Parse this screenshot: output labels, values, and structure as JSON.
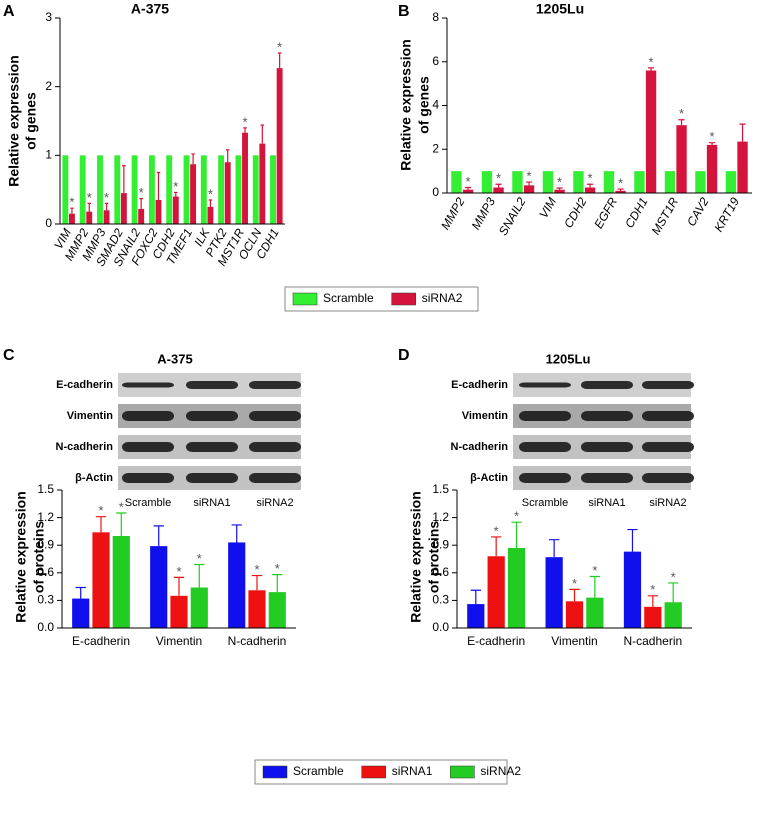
{
  "panel_labels": [
    "A",
    "B",
    "C",
    "D"
  ],
  "blots": [
    {
      "title": "A-375",
      "rows": [
        "E-cadherin",
        "Vimentin",
        "N-cadherin",
        "β-Actin"
      ],
      "lanes": [
        "Scramble",
        "siRNA1",
        "siRNA2"
      ]
    },
    {
      "title": "1205Lu",
      "rows": [
        "E-cadherin",
        "Vimentin",
        "N-cadherin",
        "β-Actin"
      ],
      "lanes": [
        "Scramble",
        "siRNA1",
        "siRNA2"
      ]
    }
  ],
  "chart_data": [
    {
      "type": "bar",
      "title": "A-375",
      "ylabel": [
        "Relative expression",
        "of genes"
      ],
      "categories": [
        "VIM",
        "MMP2",
        "MMP3",
        "SMAD2",
        "SNAIL2",
        "FOXC2",
        "CDH2",
        "TMEF1",
        "ILK",
        "PTK2",
        "MST1R",
        "OCLN",
        "CDH1"
      ],
      "ylim": [
        0,
        3
      ],
      "yticks": [
        0,
        1,
        2,
        3
      ],
      "series": [
        {
          "name": "Scramble",
          "color": "#33ee33",
          "values": [
            1,
            1,
            1,
            1,
            1,
            1,
            1,
            1,
            1,
            1,
            1,
            1,
            1
          ]
        },
        {
          "name": "siRNA2",
          "color": "#d4143c",
          "values": [
            0.15,
            0.18,
            0.2,
            0.45,
            0.22,
            0.35,
            0.4,
            0.87,
            0.25,
            0.9,
            1.33,
            1.17,
            2.27
          ],
          "errors": [
            0.08,
            0.12,
            0.1,
            0.4,
            0.15,
            0.4,
            0.06,
            0.15,
            0.1,
            0.18,
            0.07,
            0.27,
            0.22
          ],
          "annotations": [
            "*",
            "*",
            "*",
            null,
            "*",
            null,
            "*",
            null,
            "*",
            null,
            "*",
            null,
            "*"
          ]
        }
      ]
    },
    {
      "type": "bar",
      "title": "1205Lu",
      "ylabel": [
        "Relative expression",
        "of genes"
      ],
      "categories": [
        "MMP2",
        "MMP3",
        "SNAIL2",
        "VIM",
        "CDH2",
        "EGFR",
        "CDH1",
        "MST1R",
        "CAV2",
        "KRT19"
      ],
      "ylim": [
        0,
        8
      ],
      "yticks": [
        0,
        2,
        4,
        6,
        8
      ],
      "series": [
        {
          "color": "#33ee33",
          "values": [
            1,
            1,
            1,
            1,
            1,
            1,
            1,
            1,
            1,
            1
          ]
        },
        {
          "color": "#d4143c",
          "values": [
            0.15,
            0.25,
            0.35,
            0.15,
            0.25,
            0.1,
            5.6,
            3.1,
            2.2,
            2.35
          ],
          "errors": [
            0.1,
            0.15,
            0.15,
            0.08,
            0.15,
            0.08,
            0.12,
            0.25,
            0.1,
            0.8
          ],
          "annotations": [
            "*",
            "*",
            "*",
            "*",
            "*",
            "*",
            "*",
            "*",
            "*",
            null
          ]
        }
      ]
    },
    {
      "type": "bar",
      "ylabel": [
        "Relative expression",
        "of proteins"
      ],
      "categories": [
        "E-cadherin",
        "Vimentin",
        "N-cadherin"
      ],
      "ylim": [
        0,
        1.5
      ],
      "yticks": [
        {
          "value": 0,
          "label": "0.0"
        },
        0.3,
        0.6,
        0.9,
        1.2,
        1.5
      ],
      "series": [
        {
          "name": "Scramble",
          "color": "#1010ee",
          "values": [
            0.32,
            0.89,
            0.93
          ],
          "errors": [
            0.12,
            0.22,
            0.19
          ]
        },
        {
          "name": "siRNA1",
          "color": "#ee1111",
          "values": [
            1.04,
            0.35,
            0.41
          ],
          "errors": [
            0.17,
            0.2,
            0.16
          ],
          "annotations": [
            "*",
            "*",
            "*"
          ]
        },
        {
          "name": "siRNA2",
          "color": "#22cc22",
          "values": [
            1.0,
            0.44,
            0.39
          ],
          "errors": [
            0.25,
            0.25,
            0.19
          ],
          "annotations": [
            "*",
            "*",
            "*"
          ]
        }
      ]
    },
    {
      "type": "bar",
      "ylabel": [
        "Relative expression",
        "of proteins"
      ],
      "categories": [
        "E-cadherin",
        "Vimentin",
        "N-cadherin"
      ],
      "ylim": [
        0,
        1.5
      ],
      "yticks": [
        {
          "value": 0,
          "label": "0.0"
        },
        0.3,
        0.6,
        0.9,
        1.2,
        1.5
      ],
      "series": [
        {
          "color": "#1010ee",
          "values": [
            0.26,
            0.77,
            0.83
          ],
          "errors": [
            0.15,
            0.19,
            0.24
          ]
        },
        {
          "color": "#ee1111",
          "values": [
            0.78,
            0.29,
            0.23
          ],
          "errors": [
            0.21,
            0.13,
            0.12
          ],
          "annotations": [
            "*",
            "*",
            "*"
          ]
        },
        {
          "color": "#22cc22",
          "values": [
            0.87,
            0.33,
            0.28
          ],
          "errors": [
            0.28,
            0.23,
            0.21
          ],
          "annotations": [
            "*",
            "*",
            "*"
          ]
        }
      ]
    }
  ]
}
